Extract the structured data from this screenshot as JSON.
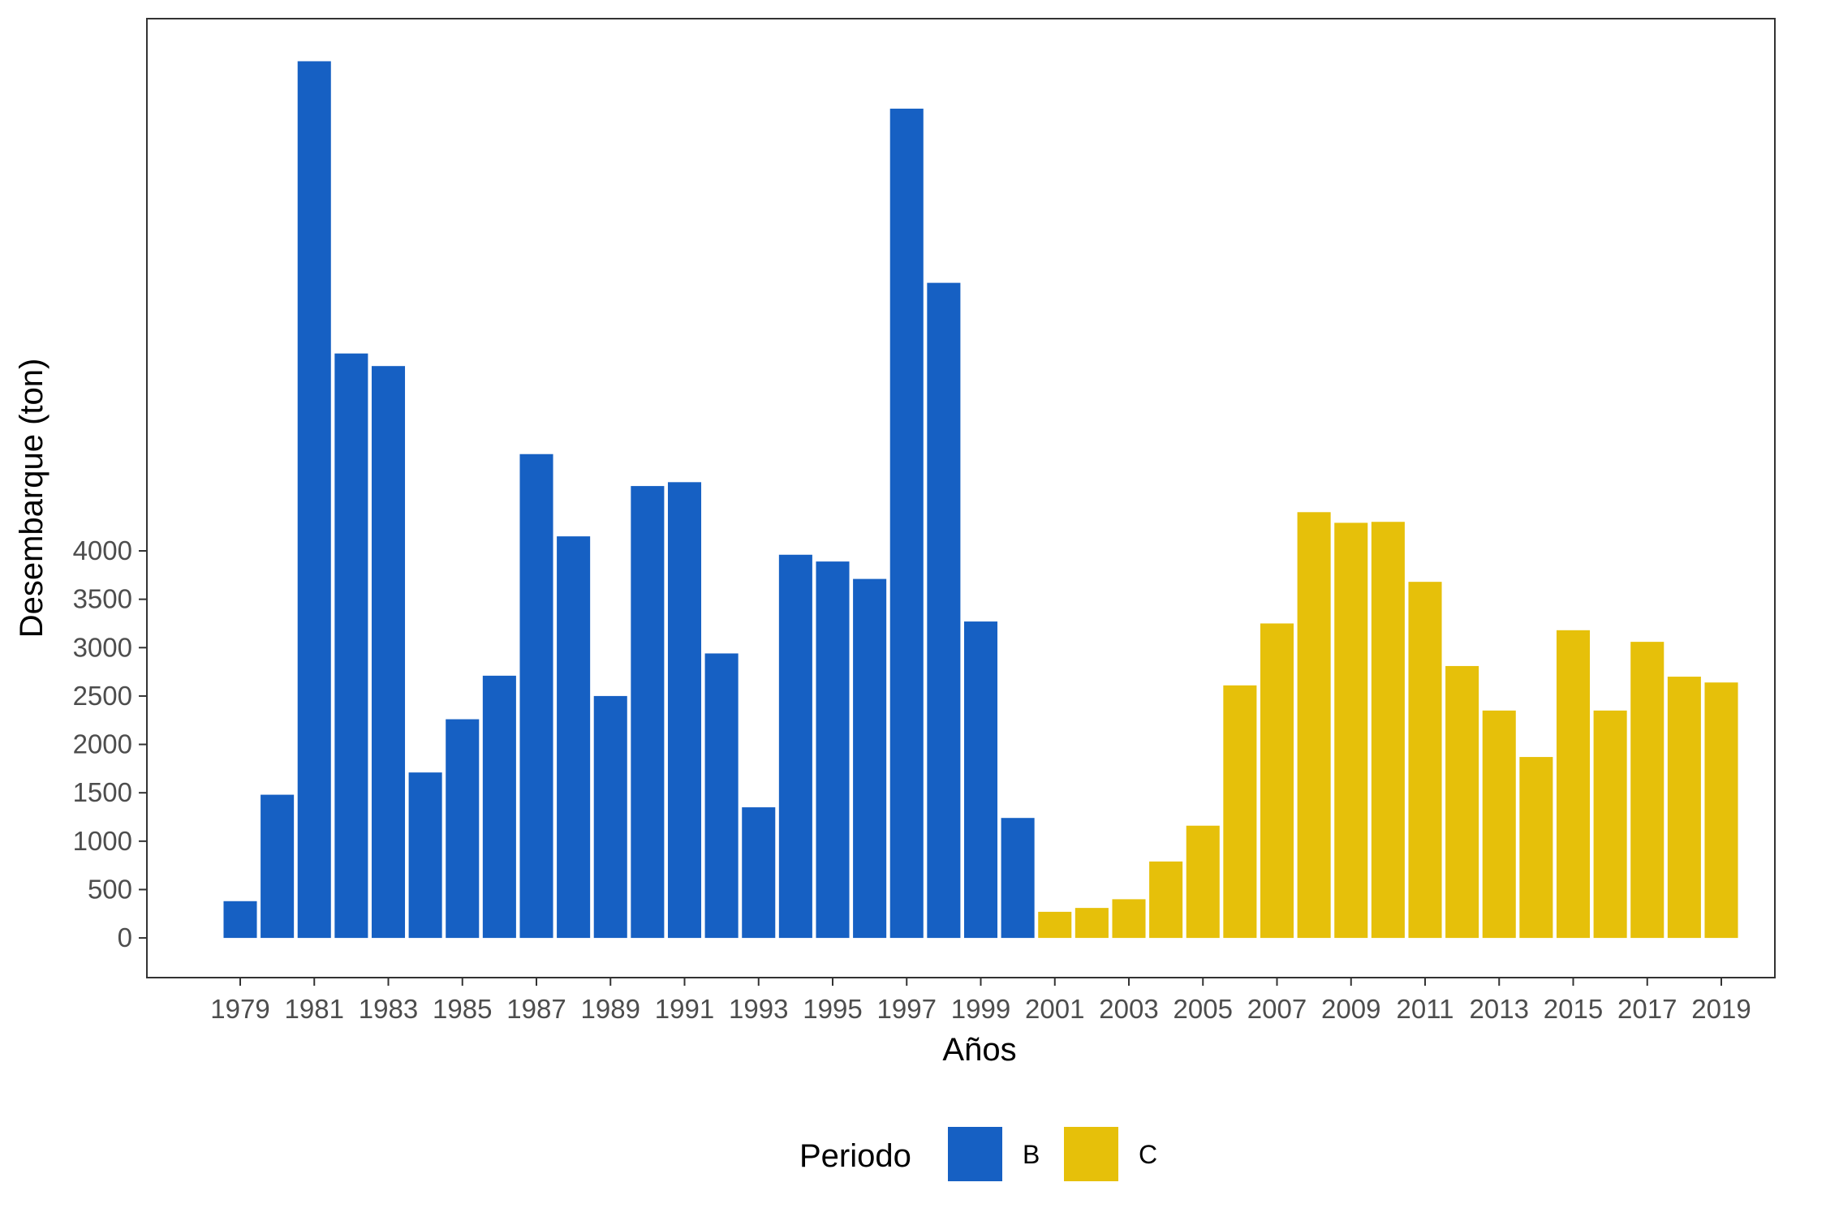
{
  "chart_data": {
    "type": "bar",
    "xlabel": "Años",
    "ylabel": "Desembarque (ton)",
    "categories": [
      1979,
      1980,
      1981,
      1982,
      1983,
      1984,
      1985,
      1986,
      1987,
      1988,
      1989,
      1990,
      1991,
      1992,
      1993,
      1994,
      1995,
      1996,
      1997,
      1998,
      1999,
      2000,
      2001,
      2002,
      2003,
      2004,
      2005,
      2006,
      2007,
      2008,
      2009,
      2010,
      2011,
      2012,
      2013,
      2014,
      2015,
      2016,
      2017,
      2018,
      2019
    ],
    "x_tick_labels": [
      "1979",
      "1981",
      "1983",
      "1985",
      "1987",
      "1989",
      "1991",
      "1993",
      "1995",
      "1997",
      "1999",
      "2001",
      "2003",
      "2005",
      "2007",
      "2009",
      "2011",
      "2013",
      "2015",
      "2017",
      "2019"
    ],
    "y_ticks": [
      0,
      500,
      1000,
      1500,
      2000,
      2500,
      3000,
      3500,
      4000
    ],
    "ylim": [
      -410,
      9500
    ],
    "values": [
      380,
      1480,
      9060,
      6040,
      5910,
      1710,
      2260,
      2710,
      5000,
      4150,
      2500,
      4670,
      4710,
      2940,
      1350,
      3960,
      3890,
      3710,
      8570,
      6770,
      3270,
      1240,
      270,
      310,
      400,
      790,
      1160,
      2610,
      3250,
      4400,
      4290,
      4300,
      3680,
      2810,
      2350,
      1870,
      3180,
      2350,
      3060,
      2700,
      2640
    ],
    "periods": [
      "B",
      "B",
      "B",
      "B",
      "B",
      "B",
      "B",
      "B",
      "B",
      "B",
      "B",
      "B",
      "B",
      "B",
      "B",
      "B",
      "B",
      "B",
      "B",
      "B",
      "B",
      "B",
      "C",
      "C",
      "C",
      "C",
      "C",
      "C",
      "C",
      "C",
      "C",
      "C",
      "C",
      "C",
      "C",
      "C",
      "C",
      "C",
      "C",
      "C",
      "C"
    ],
    "legend": {
      "title": "Periodo",
      "position": "bottom",
      "entries": [
        {
          "label": "B",
          "color": "#1660C3"
        },
        {
          "label": "C",
          "color": "#E6C00A"
        }
      ]
    },
    "grid": false
  }
}
